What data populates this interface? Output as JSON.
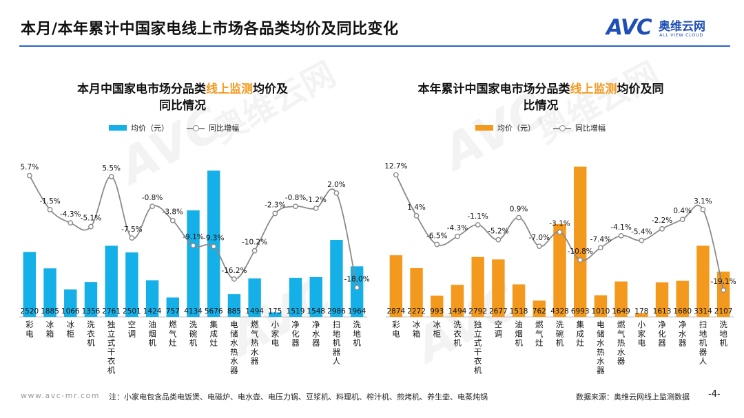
{
  "page": {
    "title": "本月/本年累计中国家电线上市场各品类均价及同比变化",
    "logo_mark": "AVC",
    "logo_cn": "奥维云网",
    "logo_en": "ALL VIEW CLOUD",
    "watermark_text": "AVC",
    "watermark_cn": "奥维云网",
    "watermark_en": "ALL VIEW CLOUD",
    "footer_url": "www.avc-mr.com",
    "footer_note": "注：小家电包含品类电饭煲、电磁炉、电水壶、电压力锅、豆浆机、料理机、榨汁机、煎烤机、养生壶、电蒸炖锅",
    "footer_source": "数据来源：奥维云网线上监测数据",
    "page_number": "-4-"
  },
  "colors": {
    "left_bar": "#15b0e8",
    "right_bar": "#f39a1e",
    "line": "#8a8a8a",
    "highlight": "#f39a1e",
    "rule": "#2b62c8"
  },
  "charts": [
    {
      "title_pre": "本月中国家电市场分品类",
      "title_hl": "线上监测",
      "title_post": "均价及",
      "title_line2": "同比情况",
      "legend_bar": "均价（元）",
      "legend_line": "同比增幅"
    },
    {
      "title_pre": "本年累计中国家电市场分品类",
      "title_hl": "线上监测",
      "title_post": "均价及同",
      "title_line2": "比情况",
      "legend_bar": "均价（元）",
      "legend_line": "同比增幅"
    }
  ],
  "chart_data": [
    {
      "type": "bar",
      "categories": [
        "彩电",
        "冰箱",
        "冰柜",
        "洗衣机",
        "独立式干衣机",
        "空调",
        "油烟机",
        "燃气灶",
        "洗碗机",
        "集成灶",
        "电储水热水器",
        "燃气热水器",
        "小家电",
        "净化器",
        "净水器",
        "扫地机器人",
        "洗地机"
      ],
      "series": [
        {
          "name": "均价（元）",
          "type": "bar",
          "values": [
            2520,
            1885,
            1066,
            1356,
            2761,
            2501,
            1424,
            757,
            4134,
            5676,
            885,
            1494,
            175,
            1519,
            1548,
            2986,
            1964
          ]
        },
        {
          "name": "同比增幅",
          "type": "line",
          "labels": [
            "5.7%",
            "-1.5%",
            "-4.3%",
            "-5.1%",
            "5.5%",
            "-7.5%",
            "-0.8%",
            "-3.8%",
            "-9.1%",
            "-9.3%",
            "-16.2%",
            "-10.2%",
            "-2.3%",
            "-0.8%",
            "-1.2%",
            "2.0%",
            "-18.0%"
          ],
          "values": [
            5.7,
            -1.5,
            -4.3,
            -5.1,
            5.5,
            -7.5,
            -0.8,
            -3.8,
            -9.1,
            -9.3,
            -16.2,
            -10.2,
            -2.3,
            -0.8,
            -1.2,
            2.0,
            -18.0
          ]
        }
      ],
      "ylim_bar": [
        0,
        6000
      ],
      "ylim_line": [
        -20,
        6.5
      ]
    },
    {
      "type": "bar",
      "categories": [
        "彩电",
        "冰箱",
        "冰柜",
        "洗衣机",
        "独立式干衣机",
        "空调",
        "油烟机",
        "燃气灶",
        "洗碗机",
        "集成灶",
        "电储水热水器",
        "燃气热水器",
        "小家电",
        "净化器",
        "净水器",
        "扫地机器人",
        "洗地机"
      ],
      "series": [
        {
          "name": "均价（元）",
          "type": "bar",
          "values": [
            2874,
            2272,
            993,
            1494,
            2792,
            2677,
            1518,
            762,
            4328,
            6993,
            1010,
            1649,
            178,
            1613,
            1680,
            3314,
            2107
          ]
        },
        {
          "name": "同比增幅",
          "type": "line",
          "labels": [
            "12.7%",
            "1.4%",
            "-6.5%",
            "-4.3%",
            "-1.1%",
            "-5.2%",
            "0.9%",
            "-7.0%",
            "-3.1%",
            "-10.8%",
            "-7.4%",
            "-4.1%",
            "-5.4%",
            "-2.2%",
            "0.4%",
            "3.1%",
            "-19.1%"
          ],
          "values": [
            12.7,
            1.4,
            -6.5,
            -4.3,
            -1.1,
            -5.2,
            0.9,
            -7.0,
            -3.1,
            -10.8,
            -7.4,
            -4.1,
            -5.4,
            -2.2,
            0.4,
            3.1,
            -19.1
          ]
        }
      ],
      "ylim_bar": [
        0,
        7200
      ],
      "ylim_line": [
        -21,
        13.5
      ]
    }
  ]
}
